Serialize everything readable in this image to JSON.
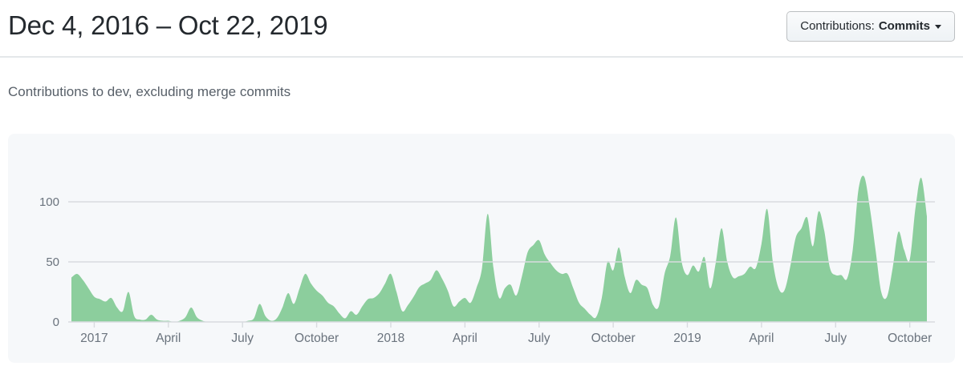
{
  "header": {
    "title": "Dec 4, 2016 – Oct 22, 2019",
    "contributions_button": {
      "prefix": "Contributions:",
      "selected": "Commits"
    }
  },
  "subtitle": "Contributions to dev, excluding merge commits",
  "chart_data": {
    "type": "area",
    "title": "Contributions to dev, excluding merge commits",
    "series_name": "Commits",
    "x_unit": "week",
    "x_start": "Dec 4, 2016",
    "x_end": "Oct 22, 2019",
    "ylim": [
      0,
      125
    ],
    "y_ticks": [
      0,
      50,
      100
    ],
    "grid": true,
    "x_ticks": [
      {
        "label": "2017",
        "week": 4
      },
      {
        "label": "April",
        "week": 17
      },
      {
        "label": "July",
        "week": 30
      },
      {
        "label": "October",
        "week": 43
      },
      {
        "label": "2018",
        "week": 56
      },
      {
        "label": "April",
        "week": 69
      },
      {
        "label": "July",
        "week": 82
      },
      {
        "label": "October",
        "week": 95
      },
      {
        "label": "2019",
        "week": 108
      },
      {
        "label": "April",
        "week": 121
      },
      {
        "label": "July",
        "week": 134
      },
      {
        "label": "October",
        "week": 147
      }
    ],
    "values": [
      37,
      40,
      35,
      28,
      21,
      19,
      17,
      20,
      12,
      9,
      25,
      5,
      2,
      2,
      6,
      2,
      1,
      1,
      0,
      1,
      4,
      12,
      4,
      1,
      0,
      0,
      0,
      0,
      0,
      0,
      0,
      1,
      3,
      15,
      5,
      1,
      3,
      12,
      24,
      15,
      28,
      40,
      32,
      26,
      22,
      16,
      13,
      7,
      3,
      9,
      6,
      13,
      19,
      20,
      24,
      32,
      40,
      25,
      9,
      14,
      21,
      29,
      32,
      35,
      43,
      36,
      26,
      13,
      17,
      20,
      16,
      28,
      45,
      90,
      45,
      20,
      28,
      31,
      22,
      38,
      58,
      64,
      68,
      56,
      49,
      43,
      40,
      40,
      28,
      16,
      11,
      6,
      4,
      20,
      50,
      43,
      62,
      38,
      24,
      35,
      31,
      28,
      14,
      13,
      40,
      55,
      87,
      50,
      39,
      47,
      42,
      54,
      28,
      50,
      78,
      50,
      37,
      38,
      40,
      46,
      45,
      65,
      94,
      50,
      28,
      26,
      45,
      70,
      78,
      87,
      63,
      92,
      76,
      45,
      39,
      39,
      36,
      60,
      110,
      121,
      95,
      60,
      25,
      21,
      45,
      75,
      60,
      52,
      95,
      120,
      88
    ],
    "colors": {
      "area_fill": "#8cce9d",
      "grid_line": "#d8dbdf",
      "axis_line": "#d8dbdf",
      "axis_label": "#6a737d",
      "panel_bg": "#f6f8fa"
    }
  }
}
